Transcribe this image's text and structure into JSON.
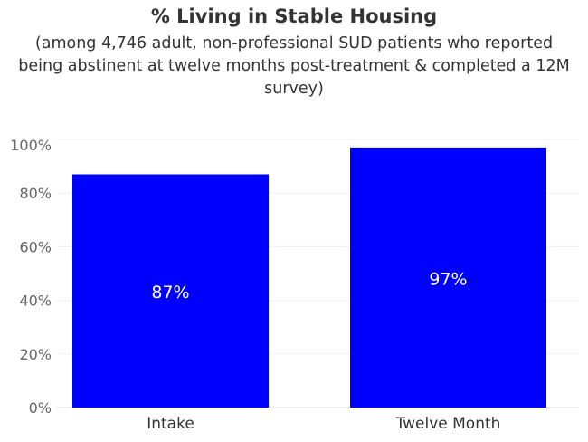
{
  "chart_data": {
    "type": "bar",
    "title": "% Living in Stable Housing",
    "subtitle": "(among 4,746 adult, non-professional SUD patients who reported being abstinent at twelve months post-treatment & completed a 12M survey)",
    "categories": [
      "Intake",
      "Twelve Month"
    ],
    "values": [
      87,
      97
    ],
    "data_labels": [
      "87%",
      "97%"
    ],
    "ylim": [
      0,
      100
    ],
    "yticks": [
      0,
      20,
      40,
      60,
      80,
      100
    ],
    "ytick_labels": [
      "0%",
      "20%",
      "40%",
      "60%",
      "80%",
      "100%"
    ],
    "bar_color": "#0000FF",
    "grid": true
  }
}
